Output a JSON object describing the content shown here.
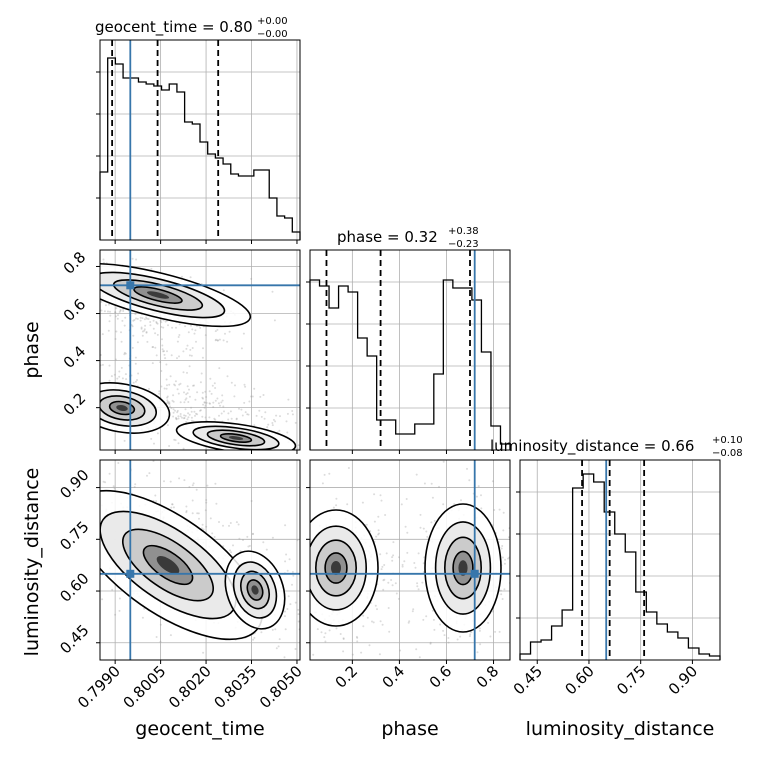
{
  "chart_data": {
    "type": "corner",
    "parameters": [
      "geocent_time",
      "phase",
      "luminosity_distance"
    ],
    "truth_color": "#3776ab",
    "titles": [
      {
        "param": "geocent_time",
        "median": "0.80",
        "plus": "+0.00",
        "minus": "−0.00"
      },
      {
        "param": "phase",
        "median": "0.32",
        "plus": "+0.38",
        "minus": "−0.23"
      },
      {
        "param": "luminosity_distance",
        "median": "0.66",
        "plus": "+0.10",
        "minus": "−0.08"
      }
    ],
    "axes": {
      "geocent_time": {
        "range": [
          0.7985,
          0.8051
        ],
        "ticks": [
          0.799,
          0.8005,
          0.802,
          0.8035,
          0.805
        ],
        "tick_labels": [
          "0.7990",
          "0.8005",
          "0.8020",
          "0.8035",
          "0.8050"
        ],
        "truth": 0.7995,
        "quantiles": [
          0.7989,
          0.8004,
          0.8024
        ]
      },
      "phase": {
        "range": [
          0.02,
          0.87
        ],
        "ticks": [
          0.2,
          0.4,
          0.6,
          0.8
        ],
        "tick_labels": [
          "0.2",
          "0.4",
          "0.6",
          "0.8"
        ],
        "truth": 0.72,
        "quantiles": [
          0.09,
          0.32,
          0.7
        ]
      },
      "luminosity_distance": {
        "range": [
          0.4,
          0.98
        ],
        "ticks": [
          0.45,
          0.6,
          0.75,
          0.9
        ],
        "tick_labels": [
          "0.45",
          "0.60",
          "0.75",
          "0.90"
        ],
        "truth": 0.65,
        "quantiles": [
          0.58,
          0.66,
          0.76
        ]
      }
    },
    "histograms": {
      "geocent_time": [
        0.34,
        0.91,
        0.88,
        0.81,
        0.81,
        0.79,
        0.78,
        0.77,
        0.75,
        0.78,
        0.74,
        0.59,
        0.58,
        0.49,
        0.43,
        0.41,
        0.38,
        0.33,
        0.32,
        0.32,
        0.35,
        0.35,
        0.21,
        0.12,
        0.11,
        0.04
      ],
      "phase": [
        0.85,
        0.82,
        0.71,
        0.82,
        0.79,
        0.56,
        0.47,
        0.15,
        0.15,
        0.08,
        0.08,
        0.13,
        0.13,
        0.38,
        0.85,
        0.81,
        0.81,
        0.75,
        0.49,
        0.12,
        0.03
      ],
      "luminosity_distance": [
        0.03,
        0.09,
        0.1,
        0.17,
        0.25,
        0.86,
        0.93,
        0.89,
        0.74,
        0.63,
        0.54,
        0.34,
        0.24,
        0.18,
        0.14,
        0.11,
        0.06,
        0.03,
        0.02
      ]
    },
    "grid": true
  }
}
